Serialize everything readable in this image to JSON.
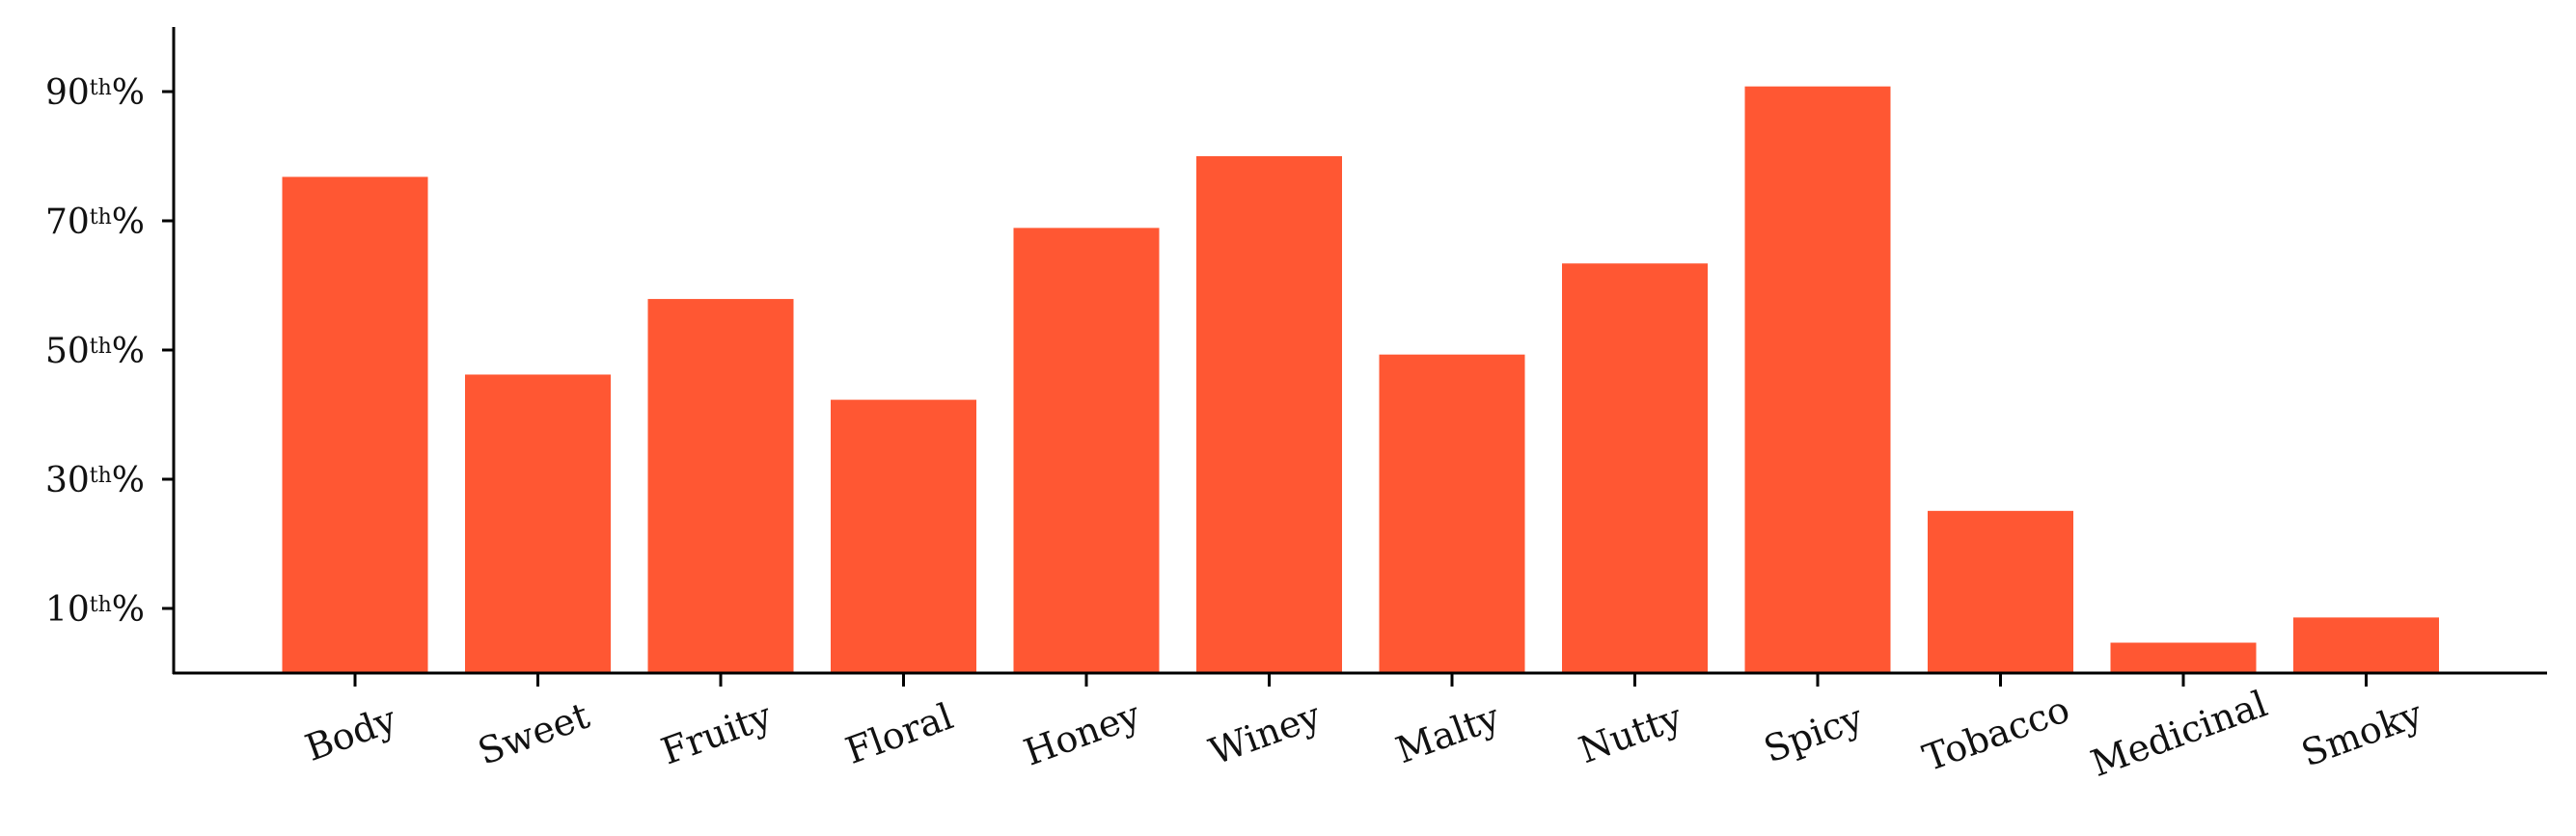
{
  "chart_data": {
    "type": "bar",
    "categories": [
      "Body",
      "Sweet",
      "Fruity",
      "Floral",
      "Honey",
      "Winey",
      "Malty",
      "Nutty",
      "Spicy",
      "Tobacco",
      "Medicinal",
      "Smoky"
    ],
    "values": [
      76.8,
      46.2,
      57.9,
      42.3,
      68.9,
      80.0,
      49.3,
      63.4,
      90.8,
      25.1,
      4.7,
      8.6
    ],
    "bar_color": "#ff5733",
    "ylim": [
      0,
      100
    ],
    "yticks": [
      {
        "value": 10,
        "number": "10",
        "sup": "th",
        "suffix": "%"
      },
      {
        "value": 30,
        "number": "30",
        "sup": "th",
        "suffix": "%"
      },
      {
        "value": 50,
        "number": "50",
        "sup": "th",
        "suffix": "%"
      },
      {
        "value": 70,
        "number": "70",
        "sup": "th",
        "suffix": "%"
      },
      {
        "value": 90,
        "number": "90",
        "sup": "th",
        "suffix": "%"
      }
    ],
    "xlabel_rotation_deg": -20,
    "grid": false,
    "title": "",
    "xlabel": "",
    "ylabel": ""
  }
}
